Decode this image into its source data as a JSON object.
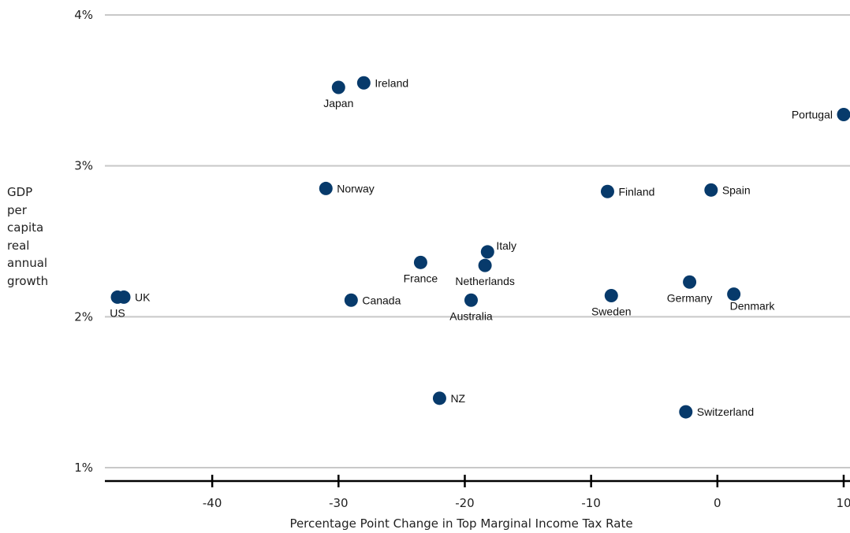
{
  "chart_data": {
    "type": "scatter",
    "xlabel": "Percentage Point Change in Top Marginal Income Tax Rate",
    "ylabel_lines": [
      "GDP",
      "per",
      "capita",
      "real",
      "annual",
      "growth"
    ],
    "xlim": [
      -48.5,
      10.5
    ],
    "ylim": [
      1,
      4
    ],
    "x_ticks": [
      -40,
      -30,
      -20,
      -10,
      0,
      10
    ],
    "y_ticks": [
      1,
      2,
      3,
      4
    ],
    "y_tick_labels": [
      "1%",
      "2%",
      "3%",
      "4%"
    ],
    "grid": "horizontal",
    "point_color": "#073a6b",
    "points": [
      {
        "label": "Japan",
        "x": -30,
        "y": 3.52,
        "label_pos": "below"
      },
      {
        "label": "Ireland",
        "x": -28,
        "y": 3.55,
        "label_pos": "right"
      },
      {
        "label": "Portugal",
        "x": 10,
        "y": 3.34,
        "label_pos": "left"
      },
      {
        "label": "Norway",
        "x": -31,
        "y": 2.85,
        "label_pos": "right"
      },
      {
        "label": "Finland",
        "x": -8.7,
        "y": 2.83,
        "label_pos": "right"
      },
      {
        "label": "Spain",
        "x": -0.5,
        "y": 2.84,
        "label_pos": "right"
      },
      {
        "label": "Italy",
        "x": -18.2,
        "y": 2.43,
        "label_pos": "above-right"
      },
      {
        "label": "France",
        "x": -23.5,
        "y": 2.36,
        "label_pos": "below"
      },
      {
        "label": "Netherlands",
        "x": -18.4,
        "y": 2.34,
        "label_pos": "below"
      },
      {
        "label": "Germany",
        "x": -2.2,
        "y": 2.23,
        "label_pos": "below"
      },
      {
        "label": "Denmark",
        "x": 1.3,
        "y": 2.15,
        "label_pos": "below-right"
      },
      {
        "label": "Sweden",
        "x": -8.4,
        "y": 2.14,
        "label_pos": "below"
      },
      {
        "label": "UK",
        "x": -47,
        "y": 2.13,
        "label_pos": "right"
      },
      {
        "label": "US",
        "x": -47.5,
        "y": 2.13,
        "label_pos": "below"
      },
      {
        "label": "Canada",
        "x": -29,
        "y": 2.11,
        "label_pos": "right"
      },
      {
        "label": "Australia",
        "x": -19.5,
        "y": 2.11,
        "label_pos": "below"
      },
      {
        "label": "NZ",
        "x": -22,
        "y": 1.46,
        "label_pos": "right"
      },
      {
        "label": "Switzerland",
        "x": -2.5,
        "y": 1.37,
        "label_pos": "right"
      }
    ]
  }
}
